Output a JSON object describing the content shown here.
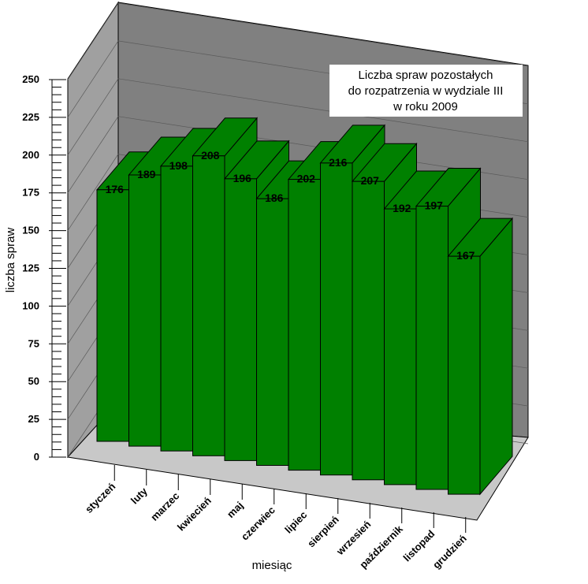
{
  "chart_data": {
    "type": "bar",
    "title": "Liczba spraw pozostałych\ndo rozpatrzenia w  wydziale III\nw roku 2009",
    "xlabel": "miesiąc",
    "ylabel": "liczba spraw",
    "ylim": [
      0,
      250
    ],
    "yticks": [
      0,
      25,
      50,
      75,
      100,
      125,
      150,
      175,
      200,
      225,
      250
    ],
    "categories": [
      "styczeń",
      "luty",
      "marzec",
      "kwiecień",
      "maj",
      "czerwiec",
      "lipiec",
      "sierpień",
      "wrzesień",
      "październik",
      "listopad",
      "grudzień"
    ],
    "values": [
      176,
      189,
      198,
      208,
      196,
      186,
      202,
      216,
      207,
      192,
      197,
      167
    ],
    "bar_color": "#008000",
    "wall_color": "#808080",
    "floor_color": "#c8c8c8",
    "grid": true,
    "legend_placement": "top-right"
  }
}
